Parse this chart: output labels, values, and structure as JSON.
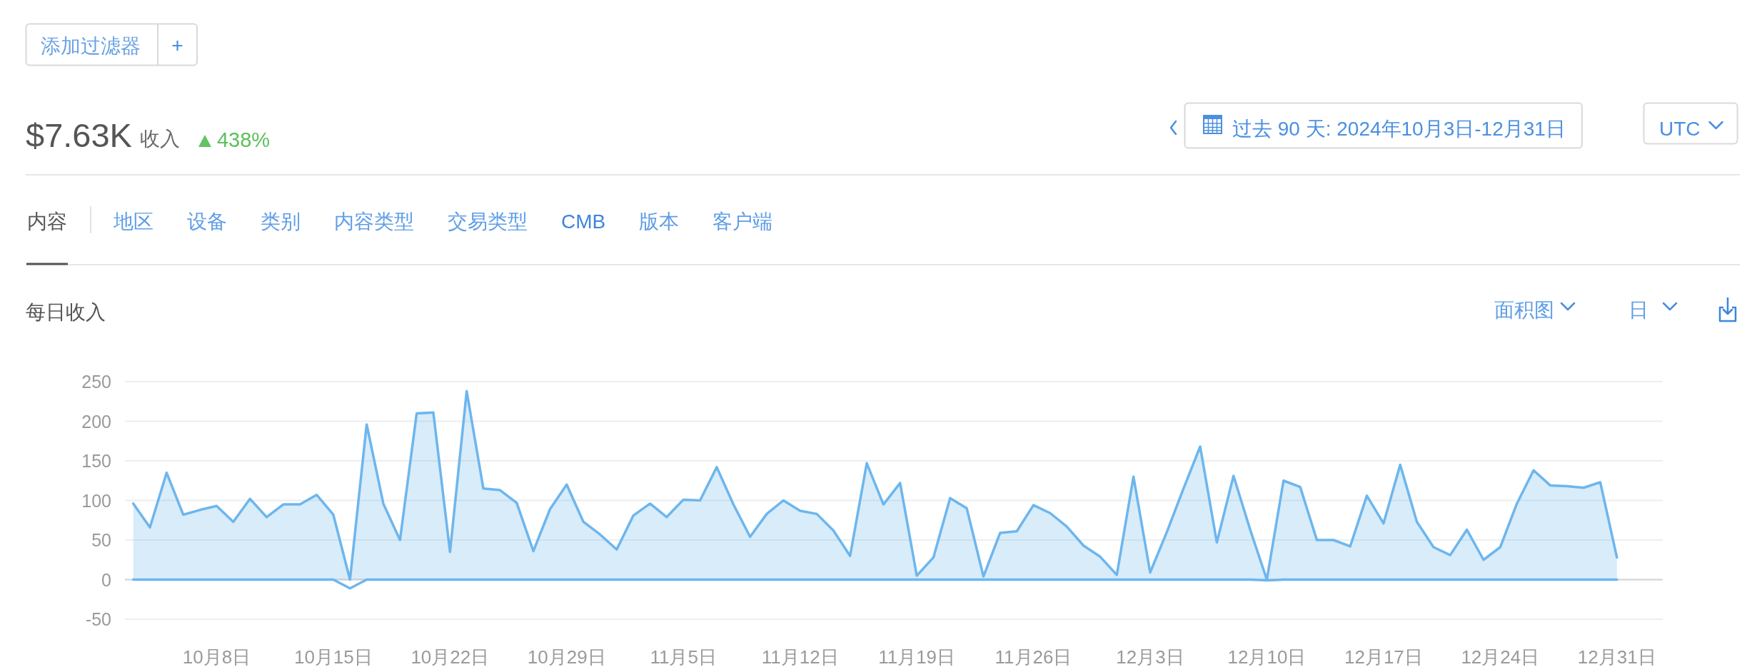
{
  "chart_data": {
    "type": "area",
    "title": "每日收入",
    "x": [
      "2024-10-03",
      "2024-10-04",
      "2024-10-05",
      "2024-10-06",
      "2024-10-07",
      "2024-10-08",
      "2024-10-09",
      "2024-10-10",
      "2024-10-11",
      "2024-10-12",
      "2024-10-13",
      "2024-10-14",
      "2024-10-15",
      "2024-10-16",
      "2024-10-17",
      "2024-10-18",
      "2024-10-19",
      "2024-10-20",
      "2024-10-21",
      "2024-10-22",
      "2024-10-23",
      "2024-10-24",
      "2024-10-25",
      "2024-10-26",
      "2024-10-27",
      "2024-10-28",
      "2024-10-29",
      "2024-10-30",
      "2024-10-31",
      "2024-11-01",
      "2024-11-02",
      "2024-11-03",
      "2024-11-04",
      "2024-11-05",
      "2024-11-06",
      "2024-11-07",
      "2024-11-08",
      "2024-11-09",
      "2024-11-10",
      "2024-11-11",
      "2024-11-12",
      "2024-11-13",
      "2024-11-14",
      "2024-11-15",
      "2024-11-16",
      "2024-11-17",
      "2024-11-18",
      "2024-11-19",
      "2024-11-20",
      "2024-11-21",
      "2024-11-22",
      "2024-11-23",
      "2024-11-24",
      "2024-11-25",
      "2024-11-26",
      "2024-11-27",
      "2024-11-28",
      "2024-11-29",
      "2024-11-30",
      "2024-12-01",
      "2024-12-02",
      "2024-12-03",
      "2024-12-04",
      "2024-12-05",
      "2024-12-06",
      "2024-12-07",
      "2024-12-08",
      "2024-12-09",
      "2024-12-10",
      "2024-12-11",
      "2024-12-12",
      "2024-12-13",
      "2024-12-14",
      "2024-12-15",
      "2024-12-16",
      "2024-12-17",
      "2024-12-18",
      "2024-12-19",
      "2024-12-20",
      "2024-12-21",
      "2024-12-22",
      "2024-12-23",
      "2024-12-24",
      "2024-12-25",
      "2024-12-26",
      "2024-12-27",
      "2024-12-28",
      "2024-12-29",
      "2024-12-30",
      "2024-12-31"
    ],
    "series": [
      {
        "color": "#6db6ed",
        "values": [
          96,
          66,
          135,
          82,
          88,
          93,
          73,
          102,
          79,
          95,
          95,
          107,
          82,
          0,
          196,
          96,
          50,
          210,
          211,
          35,
          238,
          115,
          113,
          97,
          36,
          89,
          120,
          73,
          57,
          38,
          81,
          96,
          79,
          101,
          100,
          142,
          95,
          54,
          83,
          100,
          87,
          83,
          62,
          30,
          147,
          95,
          122,
          5,
          28,
          103,
          90,
          4,
          59,
          61,
          94,
          84,
          67,
          43,
          29,
          6,
          130,
          9,
          60,
          115,
          168,
          47,
          131,
          63,
          0,
          125,
          117,
          50,
          50,
          42,
          106,
          71,
          145,
          73,
          41,
          31,
          63,
          25,
          41,
          96,
          138,
          119,
          118,
          116,
          123,
          28
        ]
      },
      {
        "type": "line",
        "color": "#6db6ed",
        "values": [
          0,
          0,
          0,
          0,
          0,
          0,
          0,
          0,
          0,
          0,
          0,
          0,
          0,
          -11,
          0,
          0,
          0,
          0,
          0,
          0,
          0,
          0,
          0,
          0,
          0,
          0,
          0,
          0,
          0,
          0,
          0,
          0,
          0,
          0,
          0,
          0,
          0,
          0,
          0,
          0,
          0,
          0,
          0,
          0,
          0,
          0,
          0,
          0,
          0,
          0,
          0,
          0,
          0,
          0,
          0,
          0,
          0,
          0,
          0,
          0,
          0,
          0,
          0,
          0,
          0,
          0,
          0,
          0,
          -1,
          0,
          0,
          0,
          0,
          0,
          0,
          0,
          0,
          0,
          0,
          0,
          0,
          0,
          0,
          0,
          0,
          0,
          0,
          0,
          0,
          0
        ]
      }
    ],
    "xlim": [
      "2024-10-02T12:00",
      "2025-01-02T18:00"
    ],
    "ylim": [
      -50,
      250
    ],
    "xticks": [
      {
        "value": "2024-10-08",
        "label": "10月8日"
      },
      {
        "value": "2024-10-15",
        "label": "10月15日"
      },
      {
        "value": "2024-10-22",
        "label": "10月22日"
      },
      {
        "value": "2024-10-29",
        "label": "10月29日"
      },
      {
        "value": "2024-11-05",
        "label": "11月5日"
      },
      {
        "value": "2024-11-12",
        "label": "11月12日"
      },
      {
        "value": "2024-11-19",
        "label": "11月19日"
      },
      {
        "value": "2024-11-26",
        "label": "11月26日"
      },
      {
        "value": "2024-12-03",
        "label": "12月3日"
      },
      {
        "value": "2024-12-10",
        "label": "12月10日"
      },
      {
        "value": "2024-12-17",
        "label": "12月17日"
      },
      {
        "value": "2024-12-24",
        "label": "12月24日"
      },
      {
        "value": "2024-12-31",
        "label": "12月31日"
      }
    ],
    "yticks": [
      -50,
      0,
      50,
      100,
      150,
      200,
      250
    ],
    "grid": "y",
    "annotations": [
      "添加过滤器",
      "$7.63K",
      "收入",
      "438%",
      "过去 90 天: 2024年10月3日-12月31日",
      "UTC",
      "内容",
      "地区",
      "设备",
      "类别",
      "内容类型",
      "交易类型",
      "CMB",
      "版本",
      "客户端",
      "面积图",
      "日"
    ]
  }
}
